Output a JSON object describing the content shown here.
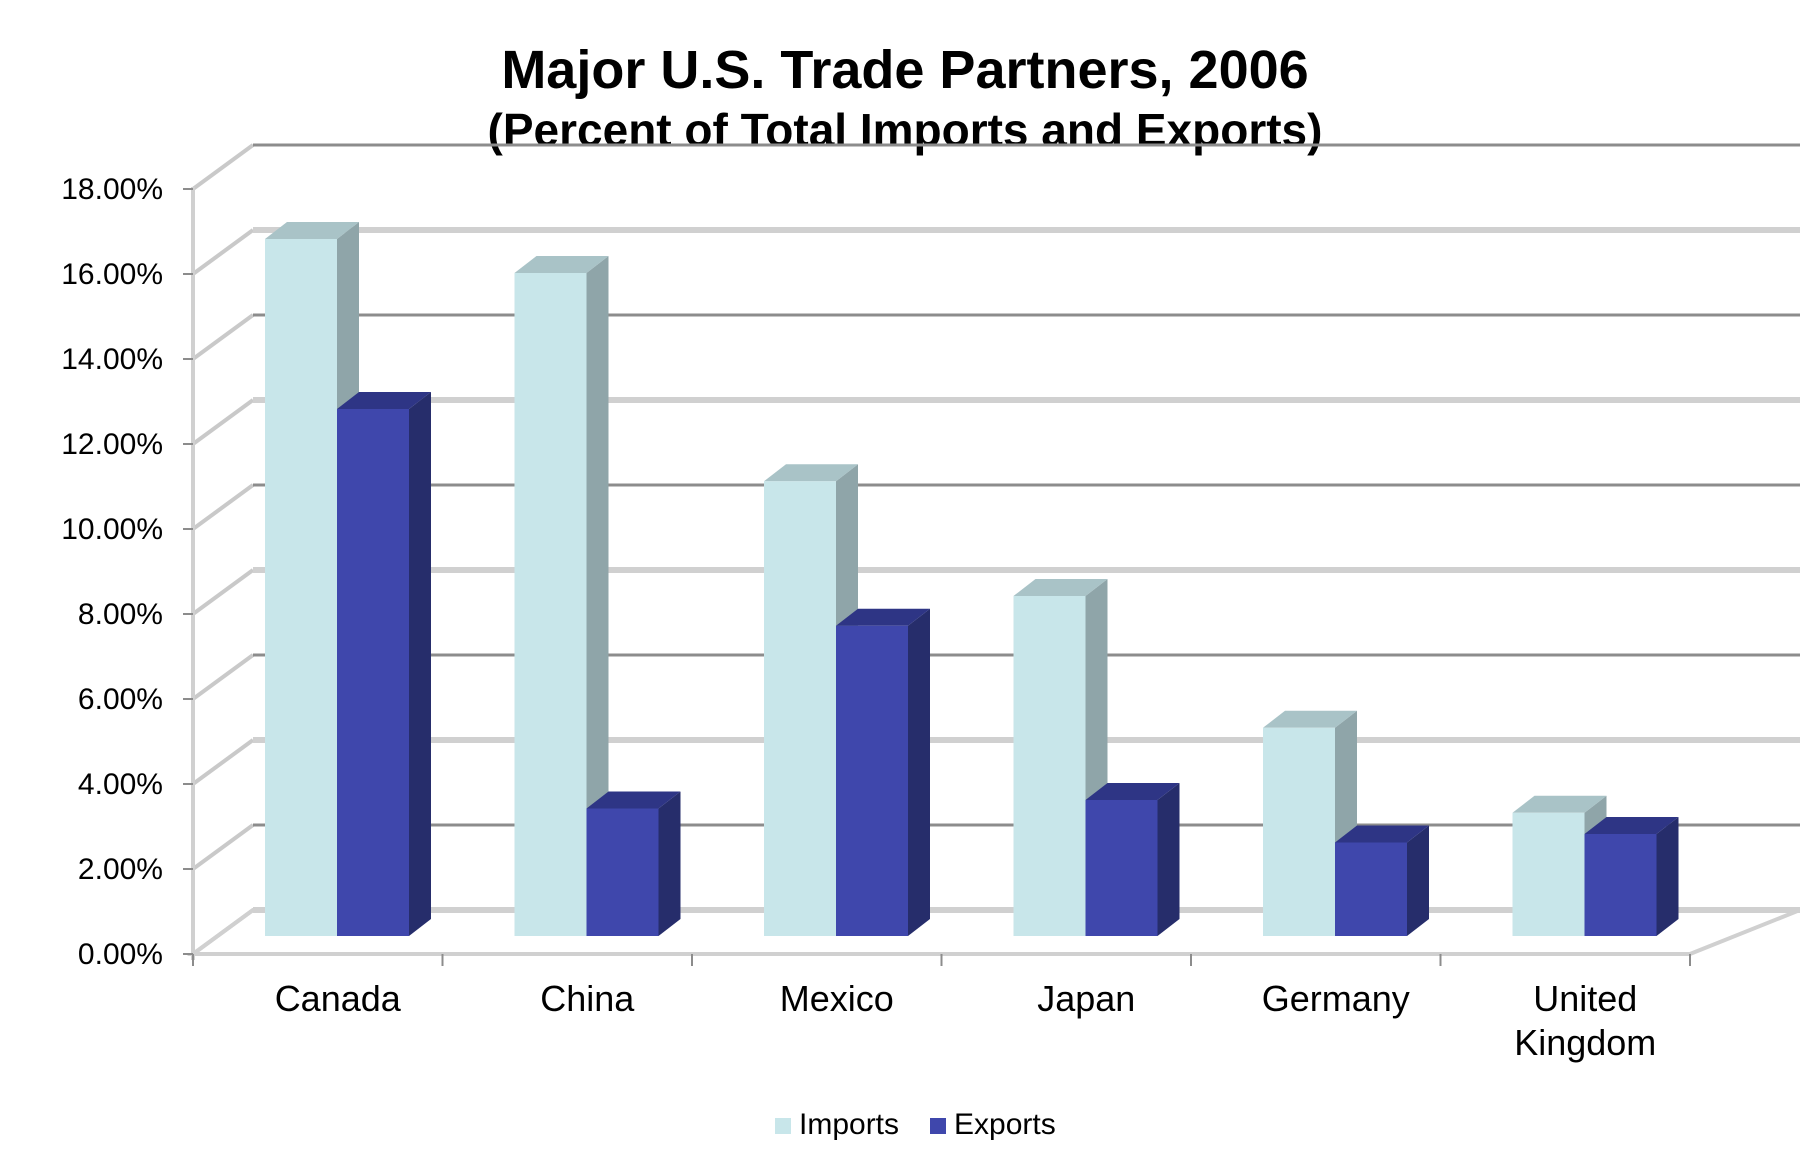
{
  "chart_data": {
    "type": "bar",
    "title": "Major U.S. Trade Partners, 2006",
    "subtitle": "(Percent of Total Imports and Exports)",
    "categories": [
      [
        "Canada"
      ],
      [
        "China"
      ],
      [
        "Mexico"
      ],
      [
        "Japan"
      ],
      [
        "Germany"
      ],
      [
        "United",
        "Kingdom"
      ]
    ],
    "series": [
      {
        "name": "Imports",
        "color": "#c8e6ea",
        "side_color": "#8fa5a9",
        "top_color": "#a9c3c7",
        "values": [
          16.4,
          15.6,
          10.7,
          8.0,
          4.9,
          2.9
        ]
      },
      {
        "name": "Exports",
        "color": "#3f47ac",
        "side_color": "#262d6b",
        "top_color": "#2e3585",
        "values": [
          12.4,
          3.0,
          7.3,
          3.2,
          2.2,
          2.4
        ]
      }
    ],
    "yticks": [
      "0.00%",
      "2.00%",
      "4.00%",
      "6.00%",
      "8.00%",
      "10.00%",
      "12.00%",
      "14.00%",
      "16.00%",
      "18.00%"
    ],
    "ylim": [
      0,
      18
    ],
    "grid": true,
    "legend_position": "bottom",
    "xlabel": "",
    "ylabel": ""
  }
}
